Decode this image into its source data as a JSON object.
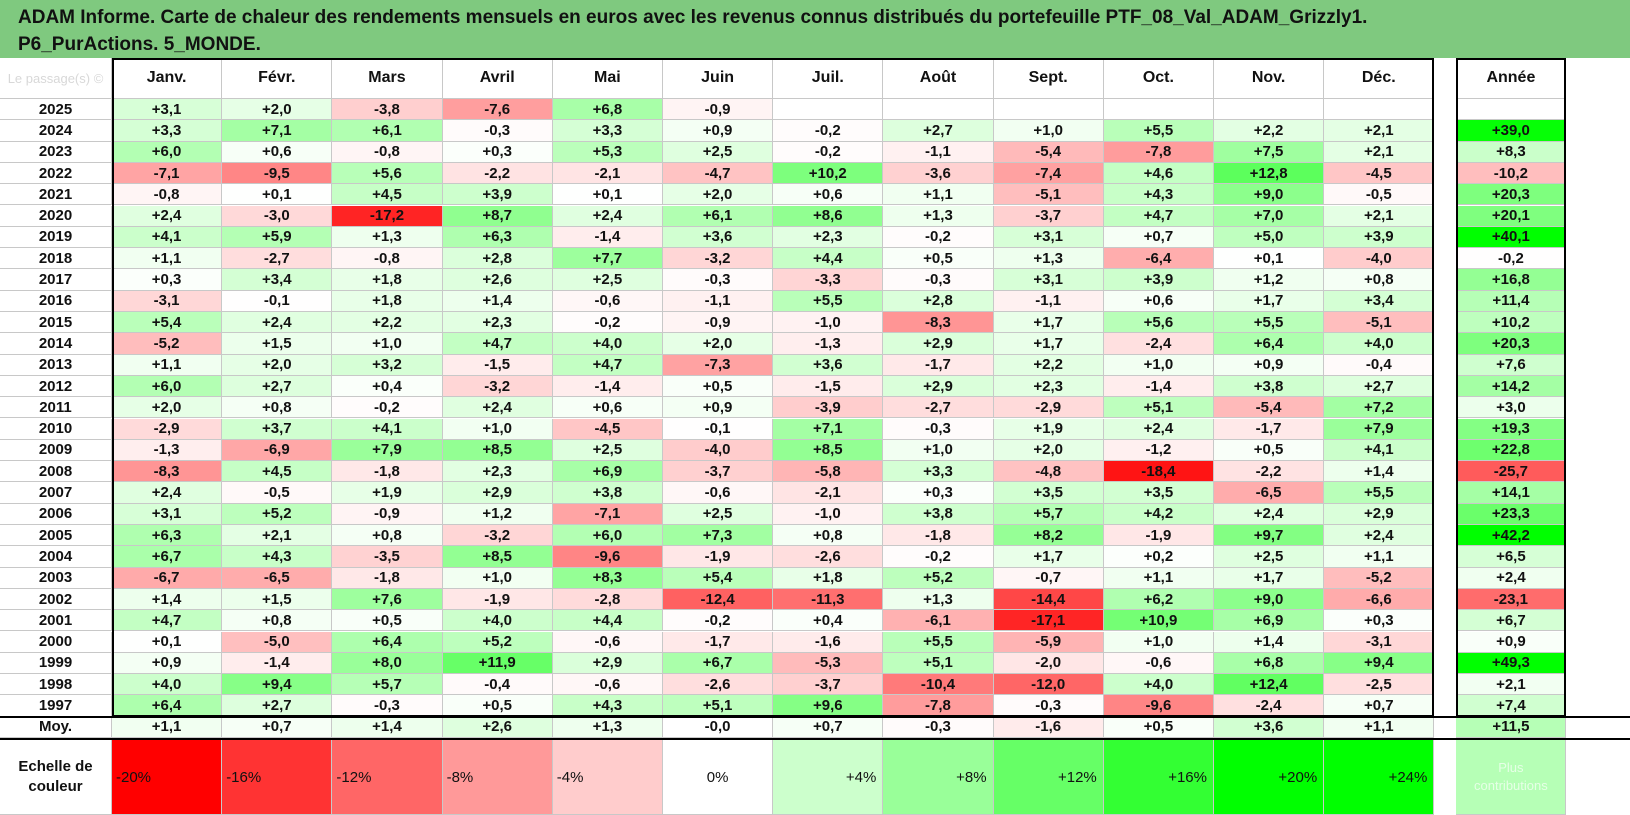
{
  "title_line1": "ADAM Informe. Carte de chaleur des rendements mensuels en euros avec les revenus connus distribués du portefeuille PTF_08_Val_ADAM_Grizzly1.",
  "title_line2": "P6_PurActions. 5_MONDE.",
  "corner_label": "Le passage(s) ©",
  "chart_data": {
    "type": "heatmap",
    "columns": [
      "Janv.",
      "Févr.",
      "Mars",
      "Avril",
      "Mai",
      "Juin",
      "Juil.",
      "Août",
      "Sept.",
      "Oct.",
      "Nov.",
      "Déc."
    ],
    "year_column": "Année",
    "rows": [
      {
        "year": "2025",
        "months": [
          "+3,1",
          "+2,0",
          "-3,8",
          "-7,6",
          "+6,8",
          "-0,9",
          "",
          "",
          "",
          "",
          "",
          ""
        ],
        "annual": ""
      },
      {
        "year": "2024",
        "months": [
          "+3,3",
          "+7,1",
          "+6,1",
          "-0,3",
          "+3,3",
          "+0,9",
          "-0,2",
          "+2,7",
          "+1,0",
          "+5,5",
          "+2,2",
          "+2,1"
        ],
        "annual": "+39,0"
      },
      {
        "year": "2023",
        "months": [
          "+6,0",
          "+0,6",
          "-0,8",
          "+0,3",
          "+5,3",
          "+2,5",
          "-0,2",
          "-1,1",
          "-5,4",
          "-7,8",
          "+7,5",
          "+2,1"
        ],
        "annual": "+8,3"
      },
      {
        "year": "2022",
        "months": [
          "-7,1",
          "-9,5",
          "+5,6",
          "-2,2",
          "-2,1",
          "-4,7",
          "+10,2",
          "-3,6",
          "-7,4",
          "+4,6",
          "+12,8",
          "-4,5"
        ],
        "annual": "-10,2"
      },
      {
        "year": "2021",
        "months": [
          "-0,8",
          "+0,1",
          "+4,5",
          "+3,9",
          "+0,1",
          "+2,0",
          "+0,6",
          "+1,1",
          "-5,1",
          "+4,3",
          "+9,0",
          "-0,5"
        ],
        "annual": "+20,3"
      },
      {
        "year": "2020",
        "months": [
          "+2,4",
          "-3,0",
          "-17,2",
          "+8,7",
          "+2,4",
          "+6,1",
          "+8,6",
          "+1,3",
          "-3,7",
          "+4,7",
          "+7,0",
          "+2,1"
        ],
        "annual": "+20,1"
      },
      {
        "year": "2019",
        "months": [
          "+4,1",
          "+5,9",
          "+1,3",
          "+6,3",
          "-1,4",
          "+3,6",
          "+2,3",
          "-0,2",
          "+3,1",
          "+0,7",
          "+5,0",
          "+3,9"
        ],
        "annual": "+40,1"
      },
      {
        "year": "2018",
        "months": [
          "+1,1",
          "-2,7",
          "-0,8",
          "+2,8",
          "+7,7",
          "-3,2",
          "+4,4",
          "+0,5",
          "+1,3",
          "-6,4",
          "+0,1",
          "-4,0"
        ],
        "annual": "-0,2"
      },
      {
        "year": "2017",
        "months": [
          "+0,3",
          "+3,4",
          "+1,8",
          "+2,6",
          "+2,5",
          "-0,3",
          "-3,3",
          "-0,3",
          "+3,1",
          "+3,9",
          "+1,2",
          "+0,8"
        ],
        "annual": "+16,8"
      },
      {
        "year": "2016",
        "months": [
          "-3,1",
          "-0,1",
          "+1,8",
          "+1,4",
          "-0,6",
          "-1,1",
          "+5,5",
          "+2,8",
          "-1,1",
          "+0,6",
          "+1,7",
          "+3,4"
        ],
        "annual": "+11,4"
      },
      {
        "year": "2015",
        "months": [
          "+5,4",
          "+2,4",
          "+2,2",
          "+2,3",
          "-0,2",
          "-0,9",
          "-1,0",
          "-8,3",
          "+1,7",
          "+5,6",
          "+5,5",
          "-5,1"
        ],
        "annual": "+10,2"
      },
      {
        "year": "2014",
        "months": [
          "-5,2",
          "+1,5",
          "+1,0",
          "+4,7",
          "+4,0",
          "+2,0",
          "-1,3",
          "+2,9",
          "+1,7",
          "-2,4",
          "+6,4",
          "+4,0"
        ],
        "annual": "+20,3"
      },
      {
        "year": "2013",
        "months": [
          "+1,1",
          "+2,0",
          "+3,2",
          "-1,5",
          "+4,7",
          "-7,3",
          "+3,6",
          "-1,7",
          "+2,2",
          "+1,0",
          "+0,9",
          "-0,4"
        ],
        "annual": "+7,6"
      },
      {
        "year": "2012",
        "months": [
          "+6,0",
          "+2,7",
          "+0,4",
          "-3,2",
          "-1,4",
          "+0,5",
          "-1,5",
          "+2,9",
          "+2,3",
          "-1,4",
          "+3,8",
          "+2,7"
        ],
        "annual": "+14,2"
      },
      {
        "year": "2011",
        "months": [
          "+2,0",
          "+0,8",
          "-0,2",
          "+2,4",
          "+0,6",
          "+0,9",
          "-3,9",
          "-2,7",
          "-2,9",
          "+5,1",
          "-5,4",
          "+7,2"
        ],
        "annual": "+3,0"
      },
      {
        "year": "2010",
        "months": [
          "-2,9",
          "+3,7",
          "+4,1",
          "+1,0",
          "-4,5",
          "-0,1",
          "+7,1",
          "-0,3",
          "+1,9",
          "+2,4",
          "-1,7",
          "+7,9"
        ],
        "annual": "+19,3"
      },
      {
        "year": "2009",
        "months": [
          "-1,3",
          "-6,9",
          "+7,9",
          "+8,5",
          "+2,5",
          "-4,0",
          "+8,5",
          "+1,0",
          "+2,0",
          "-1,2",
          "+0,5",
          "+4,1"
        ],
        "annual": "+22,8"
      },
      {
        "year": "2008",
        "months": [
          "-8,3",
          "+4,5",
          "-1,8",
          "+2,3",
          "+6,9",
          "-3,7",
          "-5,8",
          "+3,3",
          "-4,8",
          "-18,4",
          "-2,2",
          "+1,4"
        ],
        "annual": "-25,7"
      },
      {
        "year": "2007",
        "months": [
          "+2,4",
          "-0,5",
          "+1,9",
          "+2,9",
          "+3,8",
          "-0,6",
          "-2,1",
          "+0,3",
          "+3,5",
          "+3,5",
          "-6,5",
          "+5,5"
        ],
        "annual": "+14,1"
      },
      {
        "year": "2006",
        "months": [
          "+3,1",
          "+5,2",
          "-0,9",
          "+1,2",
          "-7,1",
          "+2,5",
          "-1,0",
          "+3,8",
          "+5,7",
          "+4,2",
          "+2,4",
          "+2,9"
        ],
        "annual": "+23,3"
      },
      {
        "year": "2005",
        "months": [
          "+6,3",
          "+2,1",
          "+0,8",
          "-3,2",
          "+6,0",
          "+7,3",
          "+0,8",
          "-1,8",
          "+8,2",
          "-1,9",
          "+9,7",
          "+2,4"
        ],
        "annual": "+42,2"
      },
      {
        "year": "2004",
        "months": [
          "+6,7",
          "+4,3",
          "-3,5",
          "+8,5",
          "-9,6",
          "-1,9",
          "-2,6",
          "-0,2",
          "+1,7",
          "+0,2",
          "+2,5",
          "+1,1"
        ],
        "annual": "+6,5"
      },
      {
        "year": "2003",
        "months": [
          "-6,7",
          "-6,5",
          "-1,8",
          "+1,0",
          "+8,3",
          "+5,4",
          "+1,8",
          "+5,2",
          "-0,7",
          "+1,1",
          "+1,7",
          "-5,2"
        ],
        "annual": "+2,4"
      },
      {
        "year": "2002",
        "months": [
          "+1,4",
          "+1,5",
          "+7,6",
          "-1,9",
          "-2,8",
          "-12,4",
          "-11,3",
          "+1,3",
          "-14,4",
          "+6,2",
          "+9,0",
          "-6,6"
        ],
        "annual": "-23,1"
      },
      {
        "year": "2001",
        "months": [
          "+4,7",
          "+0,8",
          "+0,5",
          "+4,0",
          "+4,4",
          "-0,2",
          "+0,4",
          "-6,1",
          "-17,1",
          "+10,9",
          "+6,9",
          "+0,3"
        ],
        "annual": "+6,7"
      },
      {
        "year": "2000",
        "months": [
          "+0,1",
          "-5,0",
          "+6,4",
          "+5,2",
          "-0,6",
          "-1,7",
          "-1,6",
          "+5,5",
          "-5,9",
          "+1,0",
          "+1,4",
          "-3,1"
        ],
        "annual": "+0,9"
      },
      {
        "year": "1999",
        "months": [
          "+0,9",
          "-1,4",
          "+8,0",
          "+11,9",
          "+2,9",
          "+6,7",
          "-5,3",
          "+5,1",
          "-2,0",
          "-0,6",
          "+6,8",
          "+9,4"
        ],
        "annual": "+49,3"
      },
      {
        "year": "1998",
        "months": [
          "+4,0",
          "+9,4",
          "+5,7",
          "-0,4",
          "-0,6",
          "-2,6",
          "-3,7",
          "-10,4",
          "-12,0",
          "+4,0",
          "+12,4",
          "-2,5"
        ],
        "annual": "+2,1"
      },
      {
        "year": "1997",
        "months": [
          "+6,4",
          "+2,7",
          "-0,3",
          "+0,5",
          "+4,3",
          "+5,1",
          "+9,6",
          "-7,8",
          "-0,3",
          "-9,6",
          "-2,4",
          "+0,7"
        ],
        "annual": "+7,4"
      }
    ],
    "average": {
      "label": "Moy.",
      "months": [
        "+1,1",
        "+0,7",
        "+1,4",
        "+2,6",
        "+1,3",
        "-0,0",
        "+0,7",
        "-0,3",
        "-1,6",
        "+0,5",
        "+3,6",
        "+1,1"
      ],
      "annual": "+11,5"
    },
    "scale": {
      "label_line1": "Echelle de",
      "label_line2": "couleur",
      "steps": [
        "-20%",
        "-16%",
        "-12%",
        "-8%",
        "-4%",
        "0%",
        "+4%",
        "+8%",
        "+12%",
        "+16%",
        "+20%",
        "+24%"
      ],
      "faint_line1": "Plus",
      "faint_line2": "contributions"
    },
    "colors": {
      "negative": "#ff0000",
      "neutral": "#ffffff",
      "positive": "#00ff00"
    }
  }
}
